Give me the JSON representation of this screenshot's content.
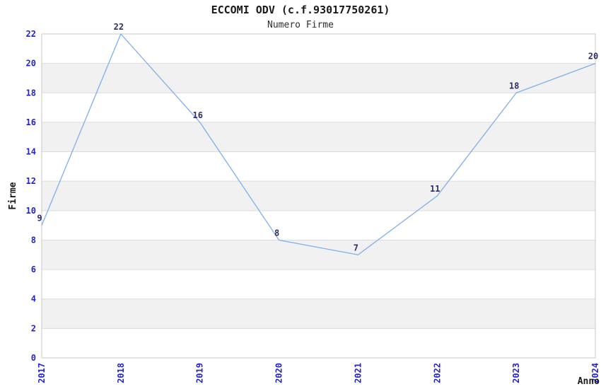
{
  "chart_data": {
    "type": "line",
    "title": "ECCOMI ODV (c.f.93017750261)",
    "subtitle": "Numero Firme",
    "xlabel": "Anno",
    "ylabel": "Firme",
    "categories": [
      "2017",
      "2018",
      "2019",
      "2020",
      "2021",
      "2022",
      "2023",
      "2024"
    ],
    "series": [
      {
        "name": "Numero Firme",
        "values": [
          9,
          22,
          16,
          8,
          7,
          11,
          18,
          20
        ]
      }
    ],
    "ylim": [
      0,
      22
    ],
    "ytick_step": 2,
    "grid": "horizontal-bands",
    "legend": "none",
    "data_labels_visible": true,
    "colors": {
      "line": "#7dafe9",
      "tick_label": "#2323cd",
      "data_label": "#2d2d6b",
      "band": "#f1f1f1",
      "gridline": "#dcdcdc",
      "border": "#c9c9c9",
      "text": "#1a1a1a"
    }
  }
}
